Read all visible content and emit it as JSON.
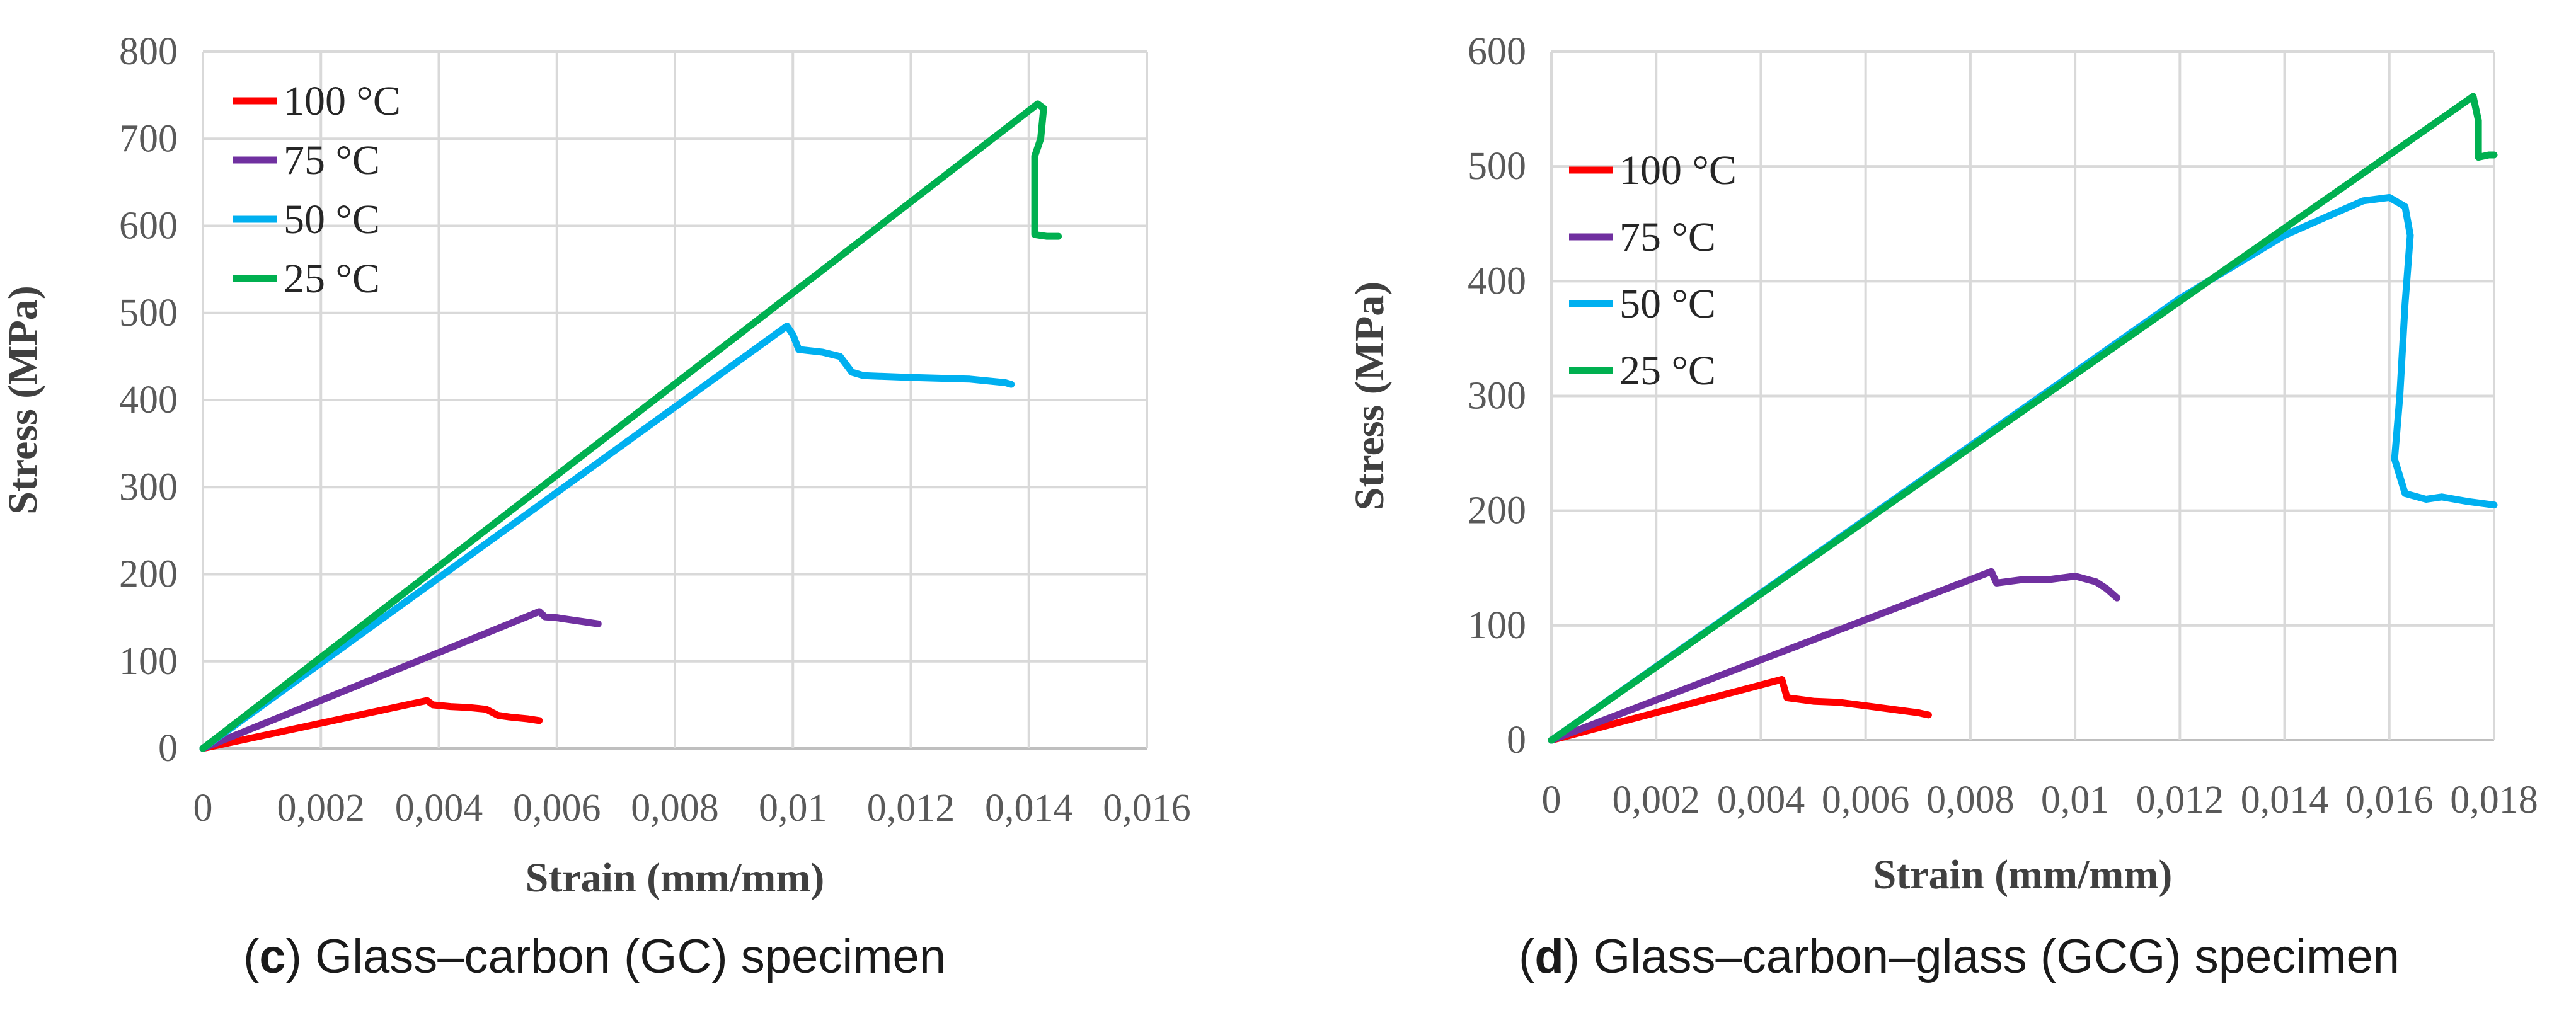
{
  "chart_data": [
    {
      "id": "c",
      "type": "line",
      "xlabel": "Strain (mm/mm)",
      "ylabel": "Stress (MPa)",
      "xlim": [
        0,
        0.016
      ],
      "ylim": [
        0,
        800
      ],
      "x_ticks": [
        0,
        0.002,
        0.004,
        0.006,
        0.008,
        0.01,
        0.012,
        0.014,
        0.016
      ],
      "x_tick_labels": [
        "0",
        "0,002",
        "0,004",
        "0,006",
        "0,008",
        "0,01",
        "0,012",
        "0,014",
        "0,016"
      ],
      "y_ticks": [
        0,
        100,
        200,
        300,
        400,
        500,
        600,
        700,
        800
      ],
      "y_tick_labels": [
        "0",
        "100",
        "200",
        "300",
        "400",
        "500",
        "600",
        "700",
        "800"
      ],
      "grid": true,
      "legend_position": "top-left",
      "series": [
        {
          "name": "100 °C",
          "color": "#ff0000",
          "points": [
            [
              0,
              0
            ],
            [
              0.0038,
              55
            ],
            [
              0.0039,
              50
            ],
            [
              0.0042,
              48
            ],
            [
              0.0045,
              47
            ],
            [
              0.0048,
              45
            ],
            [
              0.005,
              38
            ],
            [
              0.0052,
              36
            ],
            [
              0.0055,
              34
            ],
            [
              0.0057,
              32
            ]
          ]
        },
        {
          "name": "75 °C",
          "color": "#7030a0",
          "points": [
            [
              0,
              0
            ],
            [
              0.0057,
              157
            ],
            [
              0.0058,
              151
            ],
            [
              0.006,
              150
            ],
            [
              0.0062,
              148
            ],
            [
              0.0065,
              145
            ],
            [
              0.0067,
              143
            ]
          ]
        },
        {
          "name": "50 °C",
          "color": "#00b0f0",
          "points": [
            [
              0,
              0
            ],
            [
              0.0099,
              485
            ],
            [
              0.01,
              475
            ],
            [
              0.0101,
              458
            ],
            [
              0.0105,
              455
            ],
            [
              0.0108,
              450
            ],
            [
              0.011,
              432
            ],
            [
              0.0112,
              428
            ],
            [
              0.012,
              426
            ],
            [
              0.013,
              424
            ],
            [
              0.0136,
              420
            ],
            [
              0.0137,
              418
            ]
          ]
        },
        {
          "name": "25 °C",
          "color": "#00b050",
          "points": [
            [
              0,
              0
            ],
            [
              0.01415,
              740
            ],
            [
              0.01425,
              735
            ],
            [
              0.0142,
              700
            ],
            [
              0.0141,
              680
            ],
            [
              0.0141,
              590
            ],
            [
              0.0143,
              588
            ],
            [
              0.0145,
              588
            ]
          ]
        }
      ]
    },
    {
      "id": "d",
      "type": "line",
      "xlabel": "Strain (mm/mm)",
      "ylabel": "Stress (MPa)",
      "xlim": [
        0,
        0.018
      ],
      "ylim": [
        0,
        600
      ],
      "x_ticks": [
        0,
        0.002,
        0.004,
        0.006,
        0.008,
        0.01,
        0.012,
        0.014,
        0.016,
        0.018
      ],
      "x_tick_labels": [
        "0",
        "0,002",
        "0,004",
        "0,006",
        "0,008",
        "0,01",
        "0,012",
        "0,014",
        "0,016",
        "0,018"
      ],
      "y_ticks": [
        0,
        100,
        200,
        300,
        400,
        500,
        600
      ],
      "y_tick_labels": [
        "0",
        "100",
        "200",
        "300",
        "400",
        "500",
        "600"
      ],
      "grid": true,
      "legend_position": "top-left",
      "series": [
        {
          "name": "100 °C",
          "color": "#ff0000",
          "points": [
            [
              0,
              0
            ],
            [
              0.0044,
              53
            ],
            [
              0.0045,
              37
            ],
            [
              0.005,
              34
            ],
            [
              0.0055,
              33
            ],
            [
              0.006,
              30
            ],
            [
              0.0065,
              27
            ],
            [
              0.007,
              24
            ],
            [
              0.0072,
              22
            ]
          ]
        },
        {
          "name": "75 °C",
          "color": "#7030a0",
          "points": [
            [
              0,
              0
            ],
            [
              0.0084,
              147
            ],
            [
              0.0085,
              137
            ],
            [
              0.009,
              140
            ],
            [
              0.0095,
              140
            ],
            [
              0.01,
              143
            ],
            [
              0.0104,
              138
            ],
            [
              0.0106,
              132
            ],
            [
              0.0108,
              124
            ]
          ]
        },
        {
          "name": "50 °C",
          "color": "#00b0f0",
          "points": [
            [
              0,
              0
            ],
            [
              0.012,
              385
            ],
            [
              0.014,
              440
            ],
            [
              0.0155,
              470
            ],
            [
              0.016,
              473
            ],
            [
              0.0163,
              465
            ],
            [
              0.0164,
              440
            ],
            [
              0.0163,
              380
            ],
            [
              0.0162,
              300
            ],
            [
              0.0161,
              245
            ],
            [
              0.0163,
              215
            ],
            [
              0.0167,
              210
            ],
            [
              0.017,
              212
            ],
            [
              0.0175,
              208
            ],
            [
              0.018,
              205
            ]
          ]
        },
        {
          "name": "25 °C",
          "color": "#00b050",
          "points": [
            [
              0,
              0
            ],
            [
              0.0176,
              561
            ],
            [
              0.0177,
              540
            ],
            [
              0.0177,
              508
            ],
            [
              0.0179,
              510
            ],
            [
              0.018,
              510
            ]
          ]
        }
      ]
    }
  ],
  "captions": [
    {
      "letter": "c",
      "text": ") Glass–carbon (GC) specimen"
    },
    {
      "letter": "d",
      "text": ") Glass–carbon–glass (GCG) specimen"
    }
  ],
  "open_paren": "("
}
